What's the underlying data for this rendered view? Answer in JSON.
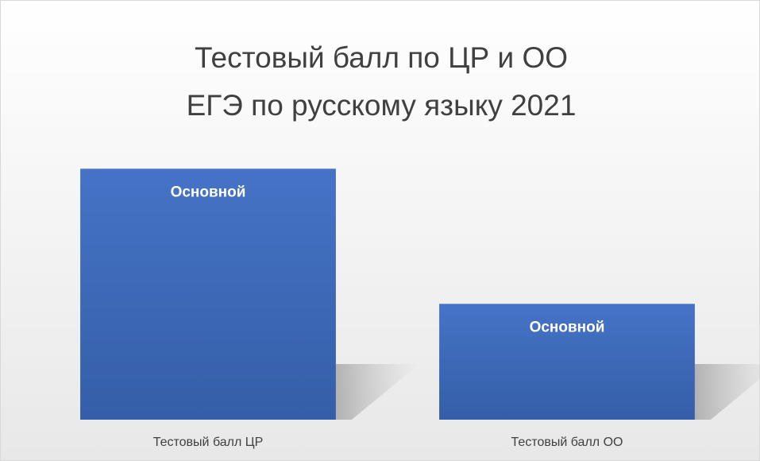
{
  "chart_data": {
    "type": "bar",
    "title": [
      "Тестовый балл по ЦР и ОО",
      "ЕГЭ по русскому языку 2021"
    ],
    "categories": [
      "Тестовый балл ЦР",
      "Тестовый балл ОО"
    ],
    "series": [
      {
        "name": "Основной",
        "color": "#4472c4",
        "values": [
          65,
          30
        ]
      }
    ],
    "ylim": [
      0,
      70
    ]
  }
}
